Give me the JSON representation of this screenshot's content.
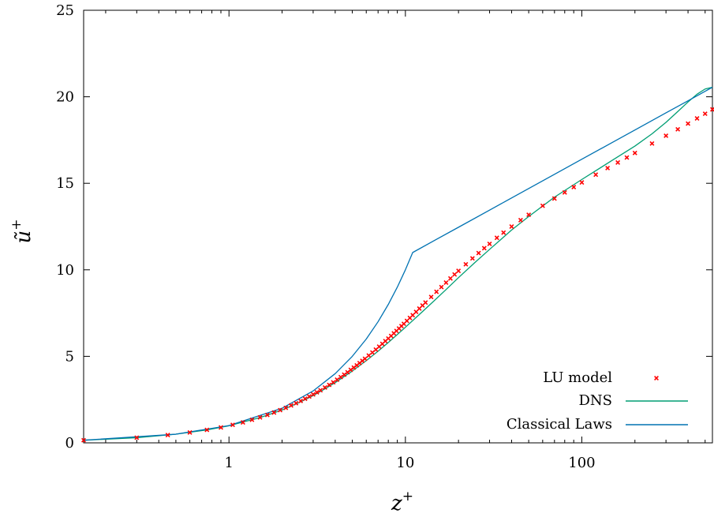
{
  "chart_data": {
    "type": "line",
    "xlabel": "z",
    "xlabel_sup": "+",
    "ylabel": "ũ",
    "ylabel_sup": "+",
    "x_scale": "log",
    "xlim": [
      0.15,
      550
    ],
    "ylim": [
      0,
      25
    ],
    "x_ticks": [
      1,
      10,
      100
    ],
    "x_tick_labels": [
      "1",
      "10",
      "100"
    ],
    "y_ticks": [
      0,
      5,
      10,
      15,
      20,
      25
    ],
    "y_tick_labels": [
      "0",
      "5",
      "10",
      "15",
      "20",
      "25"
    ],
    "grid": false,
    "legend_position": "bottom-right",
    "series": [
      {
        "name": "LU model",
        "style": "points",
        "color": "#ff0000",
        "x": [
          0.15,
          0.3,
          0.45,
          0.6,
          0.75,
          0.9,
          1.05,
          1.2,
          1.35,
          1.5,
          1.65,
          1.8,
          1.95,
          2.1,
          2.25,
          2.4,
          2.55,
          2.7,
          2.85,
          3.0,
          3.15,
          3.3,
          3.5,
          3.7,
          3.9,
          4.1,
          4.3,
          4.5,
          4.7,
          4.9,
          5.1,
          5.3,
          5.5,
          5.7,
          5.9,
          6.2,
          6.5,
          6.8,
          7.1,
          7.4,
          7.7,
          8.0,
          8.3,
          8.6,
          8.9,
          9.2,
          9.5,
          9.8,
          10.2,
          10.6,
          11.0,
          11.5,
          12.0,
          12.5,
          13.0,
          14.0,
          15.0,
          16.0,
          17.0,
          18.0,
          19.0,
          20.0,
          22.0,
          24.0,
          26.0,
          28.0,
          30.0,
          33.0,
          36.0,
          40.0,
          45.0,
          50.0,
          60.0,
          70.0,
          80.0,
          90.0,
          100.0,
          120.0,
          140.0,
          160.0,
          180.0,
          200.0,
          250.0,
          300.0,
          350.0,
          400.0,
          450.0,
          500.0,
          550.0
        ],
        "y": [
          0.15,
          0.3,
          0.45,
          0.6,
          0.75,
          0.89,
          1.04,
          1.18,
          1.33,
          1.47,
          1.61,
          1.75,
          1.89,
          2.02,
          2.16,
          2.29,
          2.42,
          2.55,
          2.68,
          2.8,
          2.92,
          3.04,
          3.2,
          3.35,
          3.5,
          3.65,
          3.8,
          3.94,
          4.08,
          4.22,
          4.35,
          4.48,
          4.61,
          4.74,
          4.86,
          5.05,
          5.22,
          5.39,
          5.56,
          5.72,
          5.88,
          6.03,
          6.18,
          6.33,
          6.47,
          6.61,
          6.75,
          6.88,
          7.05,
          7.22,
          7.38,
          7.57,
          7.76,
          7.94,
          8.11,
          8.43,
          8.73,
          9.0,
          9.26,
          9.5,
          9.73,
          9.94,
          10.32,
          10.66,
          10.97,
          11.25,
          11.5,
          11.85,
          12.15,
          12.5,
          12.87,
          13.18,
          13.7,
          14.12,
          14.47,
          14.78,
          15.05,
          15.5,
          15.88,
          16.2,
          16.49,
          16.75,
          17.3,
          17.75,
          18.12,
          18.45,
          18.75,
          19.02,
          19.27
        ]
      },
      {
        "name": "DNS",
        "style": "line",
        "color": "#009e73",
        "x": [
          0.15,
          0.3,
          0.5,
          0.75,
          1.0,
          1.5,
          2.0,
          2.5,
          3.0,
          3.5,
          4.0,
          5.0,
          6.0,
          7.0,
          8.0,
          9.0,
          10.0,
          12.0,
          14.0,
          17.0,
          20.0,
          25.0,
          30.0,
          40.0,
          50.0,
          70.0,
          100.0,
          150.0,
          200.0,
          250.0,
          300.0,
          350.0,
          400.0,
          450.0,
          500.0,
          550.0
        ],
        "y": [
          0.15,
          0.3,
          0.5,
          0.75,
          0.99,
          1.46,
          1.9,
          2.33,
          2.73,
          3.12,
          3.48,
          4.15,
          4.75,
          5.3,
          5.8,
          6.26,
          6.68,
          7.42,
          8.05,
          8.86,
          9.55,
          10.46,
          11.18,
          12.3,
          13.08,
          14.2,
          15.22,
          16.35,
          17.15,
          17.86,
          18.52,
          19.15,
          19.7,
          20.15,
          20.45,
          20.55
        ]
      },
      {
        "name": "Classical Laws",
        "style": "line",
        "color": "#0072b2",
        "x": [
          0.15,
          0.5,
          1.0,
          2.0,
          3.0,
          4.0,
          5.0,
          6.0,
          7.0,
          8.0,
          9.0,
          10.0,
          11.0,
          15.0,
          20.0,
          30.0,
          50.0,
          70.0,
          100.0,
          150.0,
          200.0,
          300.0,
          400.0,
          550.0
        ],
        "y": [
          0.15,
          0.5,
          1.0,
          2.0,
          3.0,
          4.0,
          5.0,
          6.0,
          7.0,
          8.0,
          9.0,
          10.0,
          11.0,
          11.76,
          12.46,
          13.45,
          14.7,
          15.52,
          16.39,
          17.38,
          18.08,
          19.07,
          19.77,
          20.55
        ]
      }
    ]
  }
}
